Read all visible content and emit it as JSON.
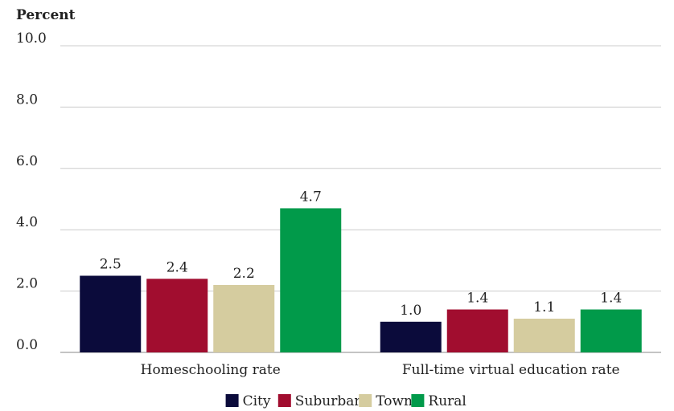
{
  "chart_data": {
    "type": "bar",
    "ylabel": "Percent",
    "categories": [
      "Homeschooling rate",
      "Full-time virtual education rate"
    ],
    "series": [
      {
        "name": "City",
        "color": "#0b0b3b",
        "values": [
          2.5,
          1.0
        ],
        "value_labels": [
          "2.5",
          "1.0"
        ]
      },
      {
        "name": "Suburban",
        "color": "#a10d2f",
        "values": [
          2.4,
          1.4
        ],
        "value_labels": [
          "2.4",
          "1.4"
        ]
      },
      {
        "name": "Town",
        "color": "#d5cc9f",
        "values": [
          2.2,
          1.1
        ],
        "value_labels": [
          "2.2",
          "1.1"
        ]
      },
      {
        "name": "Rural",
        "color": "#019a4a",
        "values": [
          4.7,
          1.4
        ],
        "value_labels": [
          "4.7",
          "1.4"
        ]
      }
    ],
    "ylim": [
      0,
      10
    ],
    "yticks": [
      {
        "value": 0,
        "label": "0.0"
      },
      {
        "value": 2,
        "label": "2.0"
      },
      {
        "value": 4,
        "label": "4.0"
      },
      {
        "value": 6,
        "label": "6.0"
      },
      {
        "value": 8,
        "label": "8.0"
      },
      {
        "value": 10,
        "label": "10.0"
      }
    ],
    "grid": true,
    "legend": "bottom"
  }
}
